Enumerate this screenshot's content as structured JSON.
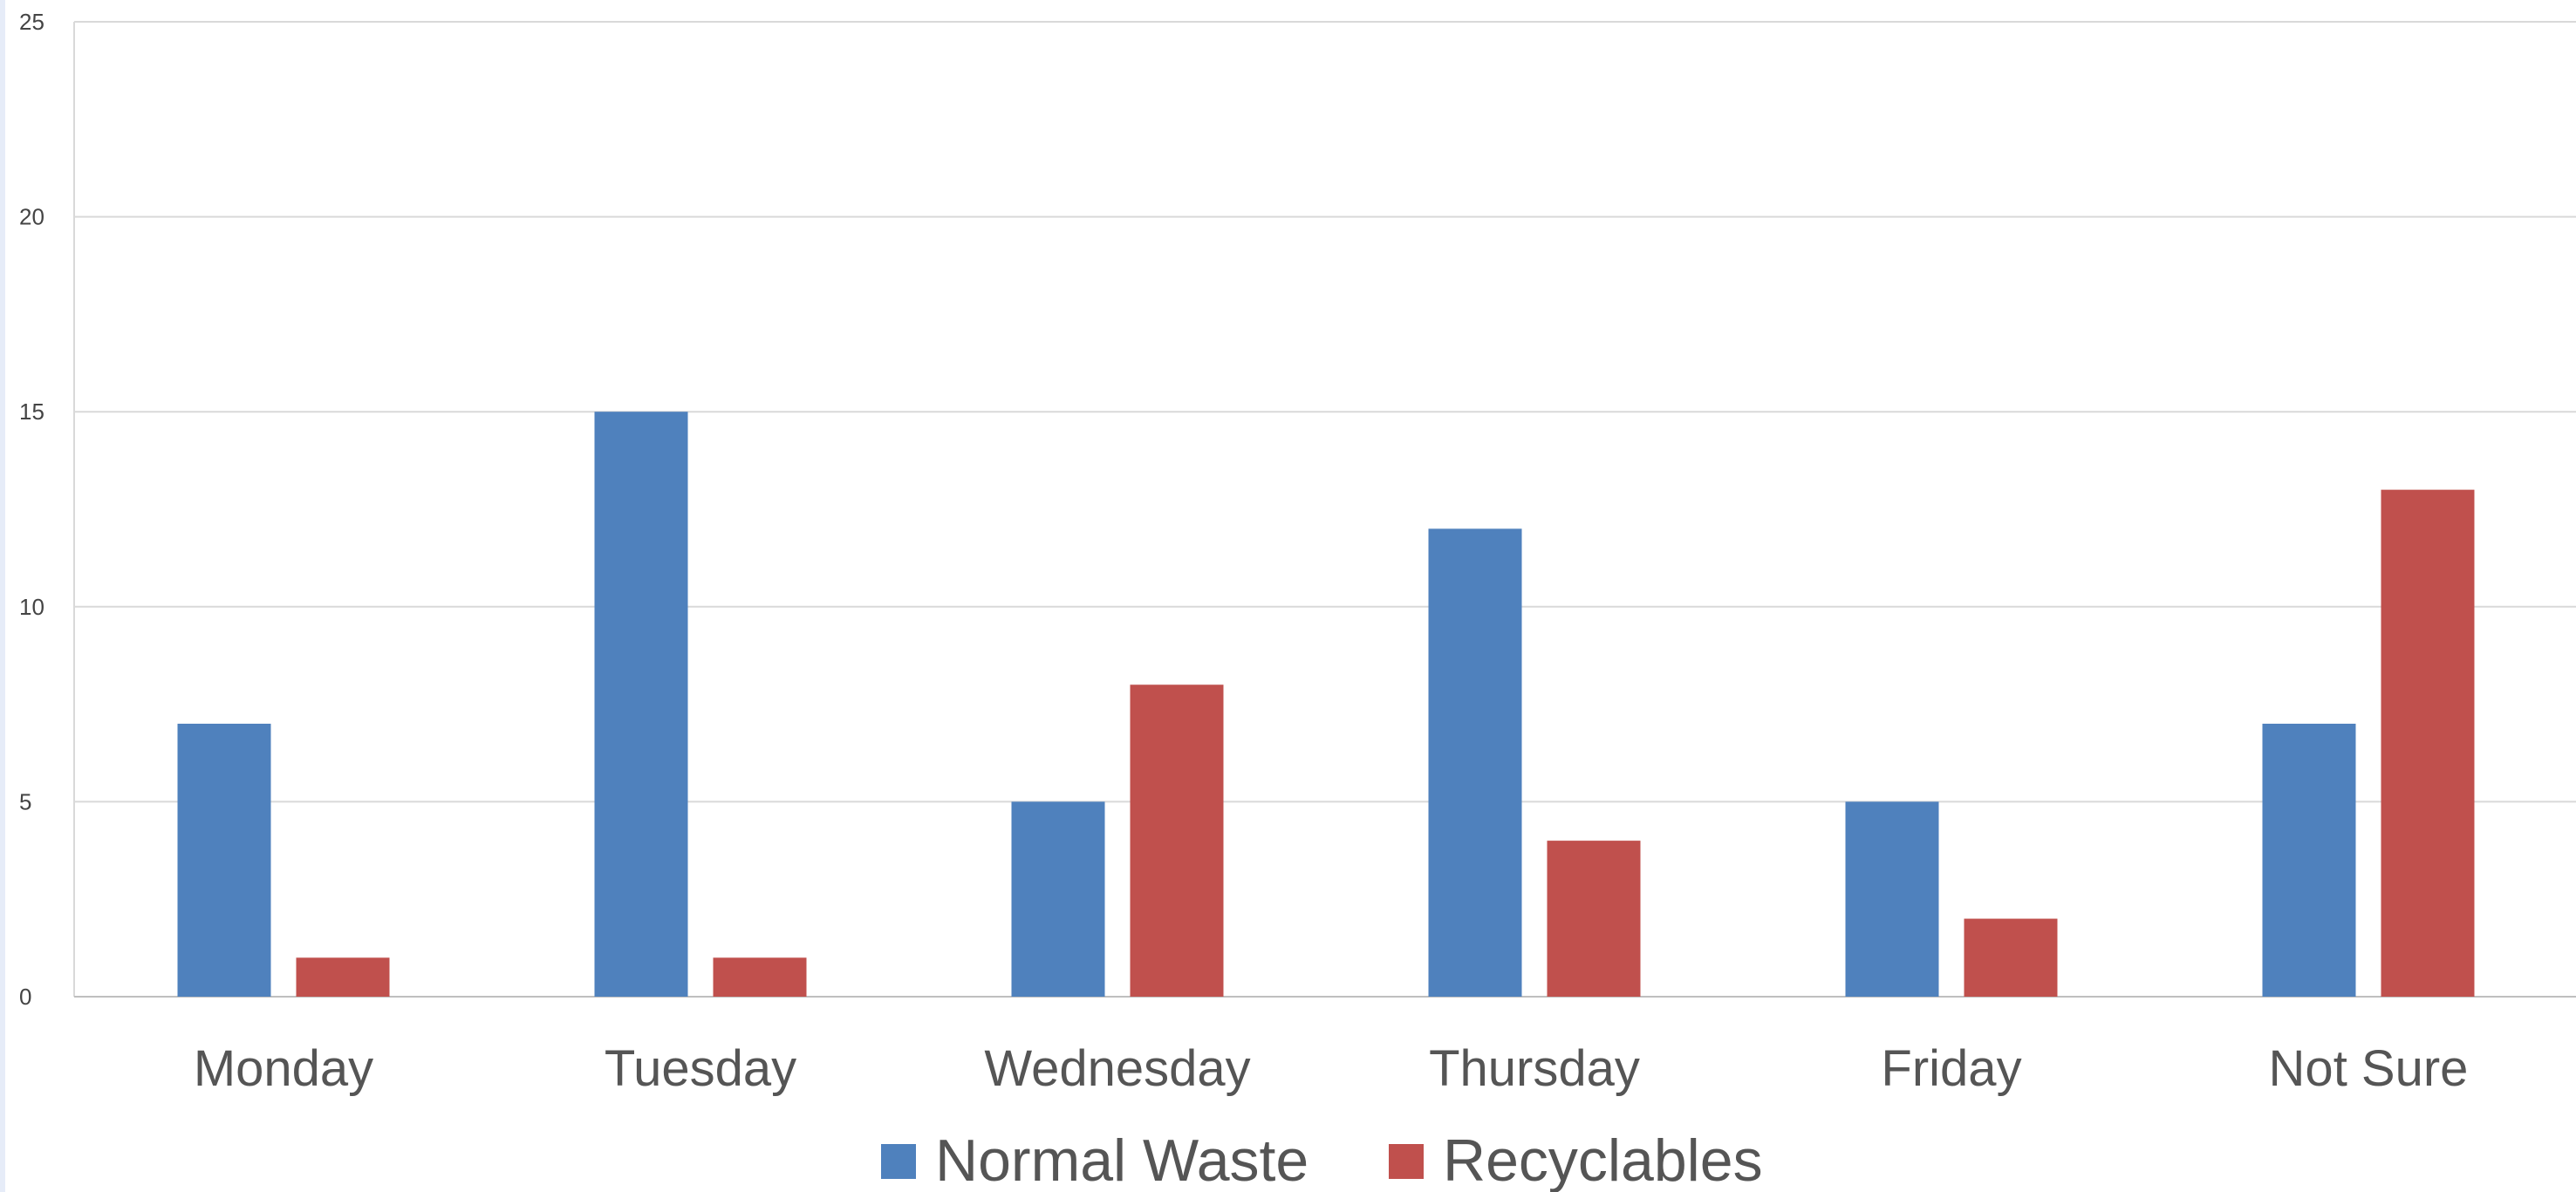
{
  "chart_data": {
    "type": "bar",
    "categories": [
      "Monday",
      "Tuesday",
      "Wednesday",
      "Thursday",
      "Friday",
      "Not Sure"
    ],
    "series": [
      {
        "name": "Normal Waste",
        "values": [
          7,
          15,
          5,
          12,
          5,
          7
        ],
        "color": "#4F81BD"
      },
      {
        "name": "Recyclables",
        "values": [
          1,
          1,
          8,
          4,
          2,
          13
        ],
        "color": "#C0504D"
      }
    ],
    "title": "",
    "xlabel": "",
    "ylabel": "",
    "ylim": [
      0,
      25
    ],
    "yticks": [
      0,
      5,
      10,
      15,
      20,
      25
    ],
    "grid": true,
    "legend": "bottom-center"
  }
}
